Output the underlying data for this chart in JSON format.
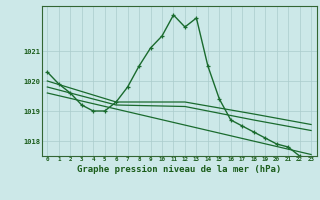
{
  "line_main": {
    "x": [
      0,
      1,
      2,
      3,
      4,
      5,
      6,
      7,
      8,
      9,
      10,
      11,
      12,
      13,
      14,
      15,
      16,
      17,
      18,
      19,
      20,
      21,
      22,
      23
    ],
    "y": [
      1020.3,
      1019.9,
      1019.6,
      1019.2,
      1019.0,
      1019.0,
      1019.3,
      1019.8,
      1020.5,
      1021.1,
      1021.5,
      1022.2,
      1021.8,
      1022.1,
      1020.5,
      1019.4,
      1018.7,
      1018.5,
      1018.3,
      1018.1,
      1017.9,
      1017.8,
      1017.5,
      1017.3
    ],
    "color": "#1a6b2e",
    "linewidth": 1.0,
    "marker": "+"
  },
  "trend1": {
    "x": [
      0,
      6,
      12,
      18,
      23
    ],
    "y": [
      1020.0,
      1019.3,
      1019.3,
      1018.9,
      1018.55
    ],
    "color": "#1a6b2e",
    "linewidth": 0.9
  },
  "trend2": {
    "x": [
      0,
      6,
      12,
      18,
      23
    ],
    "y": [
      1019.8,
      1019.2,
      1019.15,
      1018.7,
      1018.35
    ],
    "color": "#1a6b2e",
    "linewidth": 0.9
  },
  "trend3": {
    "x": [
      0,
      23
    ],
    "y": [
      1019.6,
      1017.55
    ],
    "color": "#1a6b2e",
    "linewidth": 0.9
  },
  "background_color": "#cce8e8",
  "grid_color": "#aacccc",
  "axis_color": "#336633",
  "text_color": "#1a5c1a",
  "xlabel": "Graphe pression niveau de la mer (hPa)",
  "xlabel_fontsize": 6.5,
  "yticks": [
    1018,
    1019,
    1020,
    1021
  ],
  "xticks": [
    0,
    1,
    2,
    3,
    4,
    5,
    6,
    7,
    8,
    9,
    10,
    11,
    12,
    13,
    14,
    15,
    16,
    17,
    18,
    19,
    20,
    21,
    22,
    23
  ],
  "xlim": [
    -0.5,
    23.5
  ],
  "ylim": [
    1017.5,
    1022.5
  ]
}
